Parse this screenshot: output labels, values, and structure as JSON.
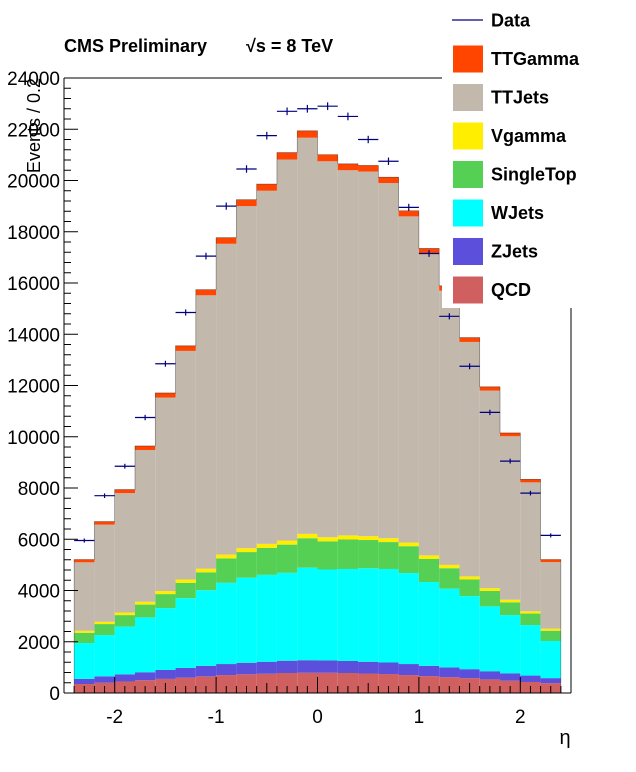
{
  "chart_data": {
    "type": "bar",
    "stacked": true,
    "title": "CMS Preliminary",
    "title_energy": "√s = 8 TeV",
    "xlabel": "η",
    "ylabel": "Events / 0.2",
    "xlim": [
      -2.5,
      2.5
    ],
    "ylim": [
      0,
      24000
    ],
    "x_ticks": [
      -2,
      -1,
      0,
      1,
      2
    ],
    "y_ticks": [
      0,
      2000,
      4000,
      6000,
      8000,
      10000,
      12000,
      14000,
      16000,
      18000,
      20000,
      22000,
      24000
    ],
    "grid": false,
    "legend_position": "top-right",
    "bin_edges": [
      -2.4,
      -2.2,
      -2.0,
      -1.8,
      -1.6,
      -1.4,
      -1.2,
      -1.0,
      -0.8,
      -0.6,
      -0.4,
      -0.2,
      0.0,
      0.2,
      0.4,
      0.6,
      0.8,
      1.0,
      1.2,
      1.4,
      1.6,
      1.8,
      2.0,
      2.2,
      2.4
    ],
    "series": [
      {
        "name": "QCD",
        "color": "#d06060",
        "values": [
          350,
          400,
          450,
          500,
          550,
          600,
          650,
          700,
          730,
          750,
          780,
          790,
          790,
          780,
          760,
          740,
          700,
          660,
          620,
          580,
          530,
          480,
          430,
          380
        ]
      },
      {
        "name": "ZJets",
        "color": "#5b4fdc",
        "values": [
          200,
          250,
          280,
          310,
          350,
          380,
          410,
          430,
          450,
          470,
          480,
          490,
          480,
          470,
          460,
          450,
          430,
          400,
          380,
          350,
          320,
          290,
          250,
          200
        ]
      },
      {
        "name": "WJets",
        "color": "#00ffff",
        "values": [
          1400,
          1610,
          1860,
          2140,
          2410,
          2720,
          2950,
          3170,
          3320,
          3390,
          3430,
          3610,
          3550,
          3590,
          3650,
          3650,
          3550,
          3270,
          3070,
          2850,
          2530,
          2270,
          1970,
          1450
        ]
      },
      {
        "name": "SingleTop",
        "color": "#55d055",
        "values": [
          400,
          430,
          450,
          500,
          550,
          600,
          700,
          950,
          1000,
          1050,
          1100,
          1150,
          1100,
          1150,
          1100,
          1050,
          1050,
          900,
          800,
          650,
          600,
          500,
          450,
          400
        ]
      },
      {
        "name": "Vgamma",
        "color": "#ffee00",
        "values": [
          80,
          90,
          100,
          110,
          120,
          130,
          140,
          150,
          150,
          160,
          160,
          170,
          160,
          160,
          150,
          150,
          140,
          140,
          130,
          120,
          110,
          100,
          90,
          80
        ]
      },
      {
        "name": "TTJets",
        "color": "#c2b8ac",
        "values": [
          2670,
          3790,
          4660,
          5920,
          7550,
          8920,
          10670,
          12130,
          13350,
          13780,
          14870,
          15460,
          14670,
          14250,
          14230,
          13860,
          12730,
          11780,
          10700,
          9150,
          7710,
          6380,
          5030,
          2600
        ]
      },
      {
        "name": "TTGamma",
        "color": "#ff4500",
        "values": [
          110,
          120,
          140,
          160,
          180,
          200,
          220,
          240,
          250,
          260,
          270,
          270,
          260,
          250,
          240,
          230,
          220,
          200,
          190,
          170,
          150,
          130,
          120,
          100
        ]
      }
    ],
    "data_points": {
      "name": "Data",
      "color": "#000080",
      "x": [
        -2.3,
        -2.1,
        -1.9,
        -1.7,
        -1.5,
        -1.3,
        -1.1,
        -0.9,
        -0.7,
        -0.5,
        -0.3,
        -0.1,
        0.1,
        0.3,
        0.5,
        0.7,
        0.9,
        1.1,
        1.3,
        1.5,
        1.7,
        1.9,
        2.1,
        2.3
      ],
      "y": [
        5950,
        7700,
        8850,
        10750,
        12850,
        14850,
        17050,
        19000,
        20450,
        21750,
        22700,
        22800,
        22900,
        22500,
        21600,
        20750,
        18950,
        17150,
        14700,
        12750,
        10950,
        9050,
        7800,
        6150
      ],
      "errors": [
        80,
        90,
        95,
        105,
        115,
        120,
        130,
        140,
        145,
        150,
        150,
        150,
        150,
        150,
        145,
        145,
        140,
        130,
        120,
        115,
        105,
        95,
        90,
        80
      ]
    },
    "legend_order": [
      "Data",
      "TTGamma",
      "TTJets",
      "Vgamma",
      "SingleTop",
      "WJets",
      "ZJets",
      "QCD"
    ]
  }
}
